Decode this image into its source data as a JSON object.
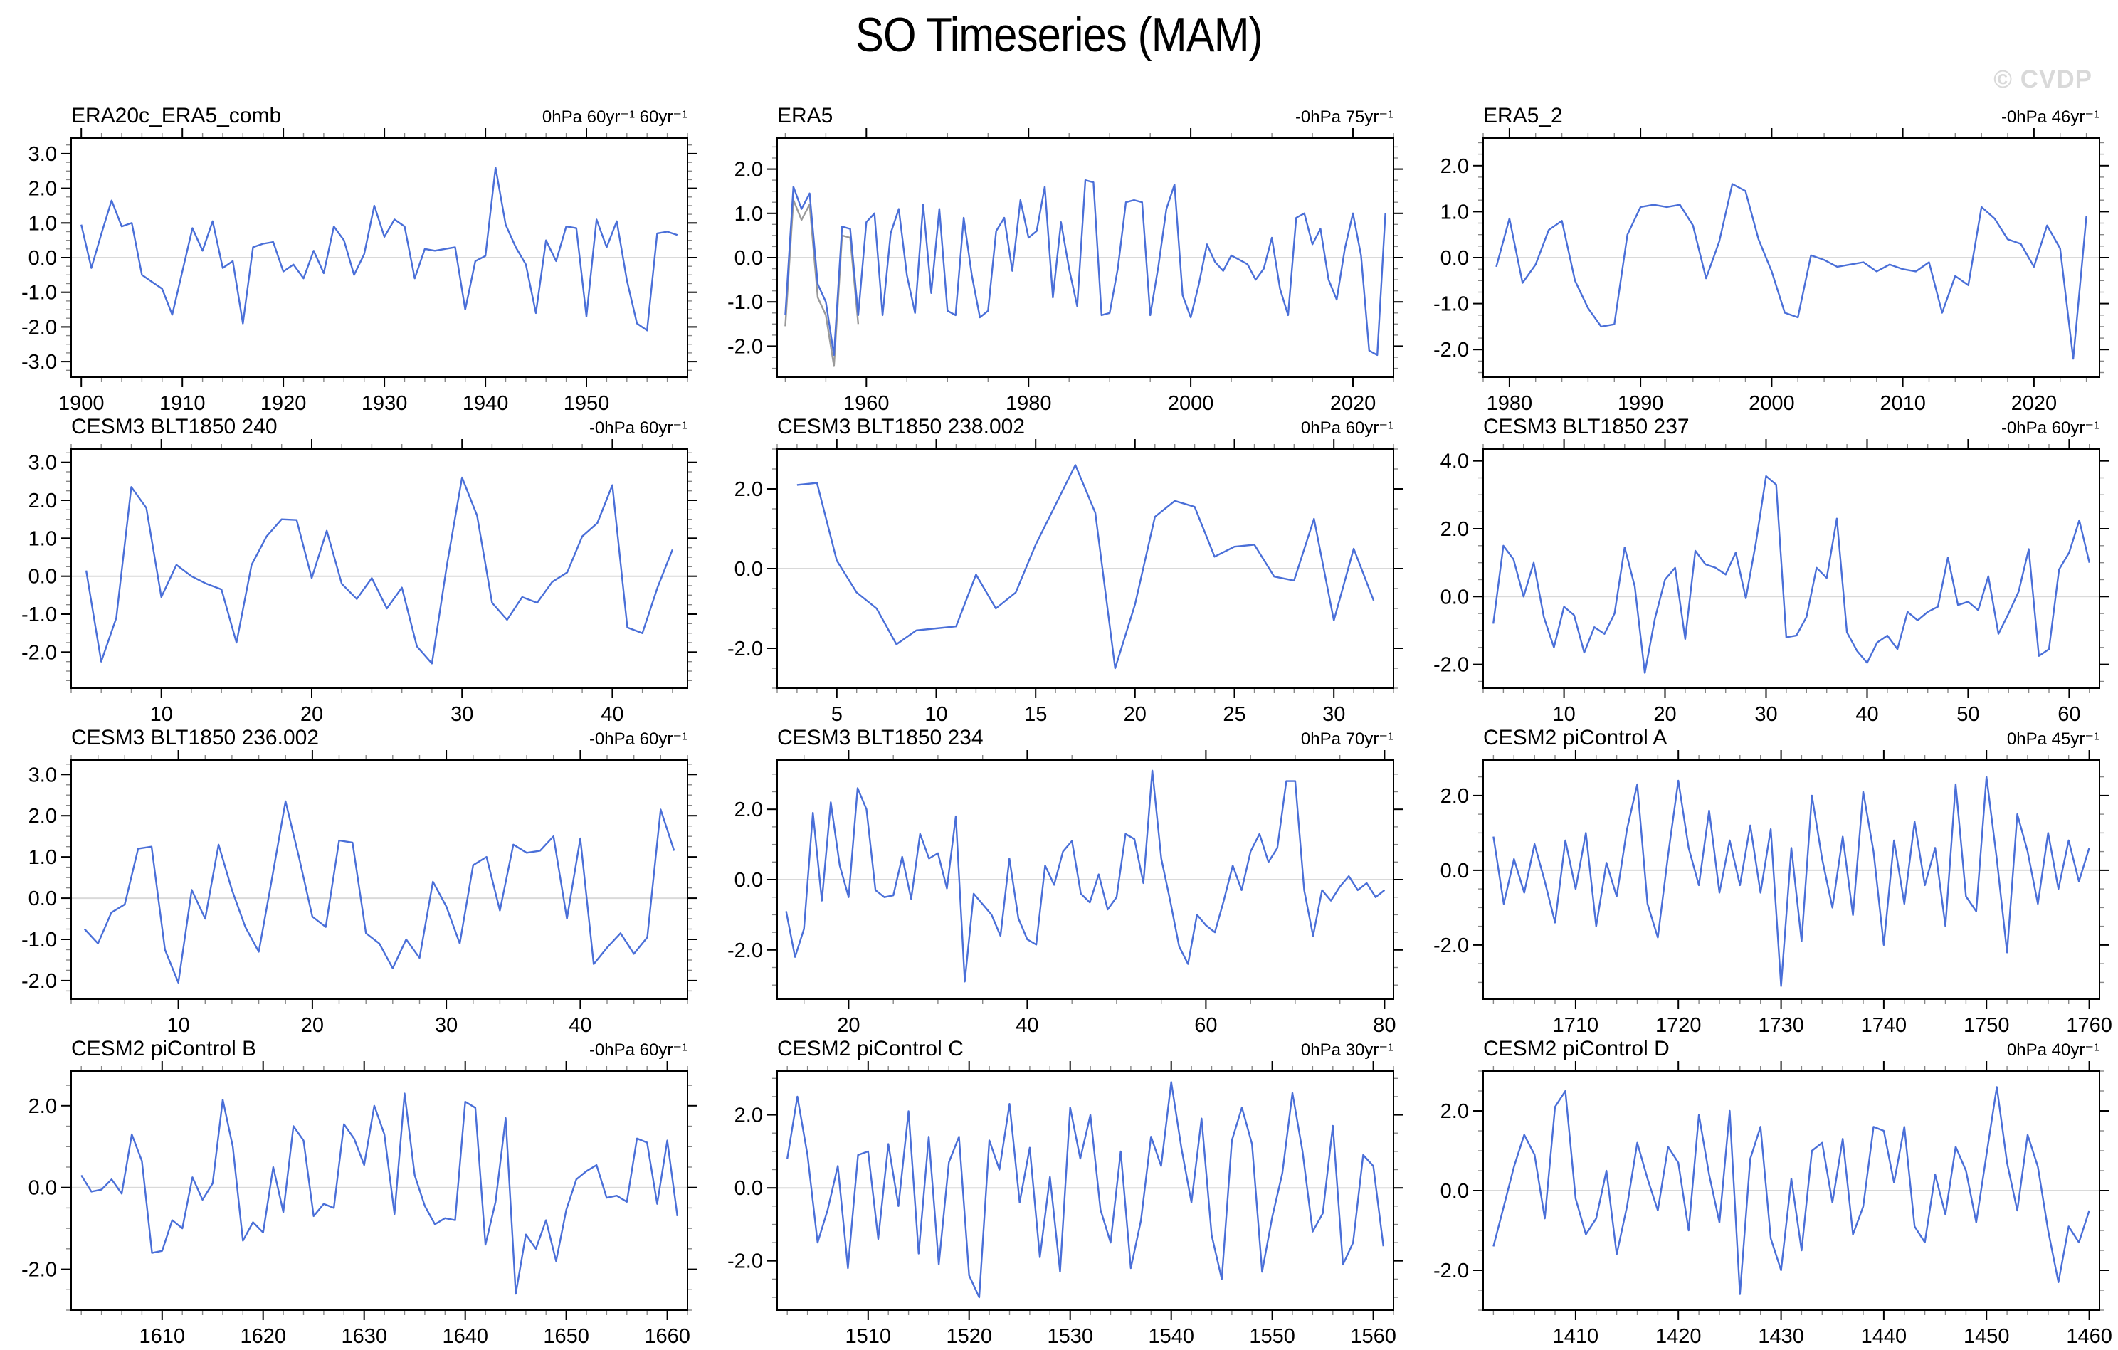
{
  "page": {
    "title": "SO Timeseries (MAM)",
    "watermark": "© CVDP"
  },
  "colors": {
    "line": "#4a6fd8",
    "overlay_line": "#9a9a9a",
    "zero_line": "#d9d9d9",
    "axis": "#000000",
    "minor_tick": "#888888",
    "watermark": "#d9d9d9"
  },
  "chart_data": [
    {
      "type": "line",
      "title": "ERA20c_ERA5_comb",
      "units": "0hPa 60yr⁻¹ 60yr⁻¹",
      "xlabel": "",
      "ylabel": "",
      "grid": false,
      "zero_line": true,
      "legend": "none",
      "x_start": 1900,
      "x_step": 1,
      "xlim": [
        1899,
        1960
      ],
      "ylim": [
        -3.45,
        3.45
      ],
      "x_ticks": [
        1900,
        1910,
        1920,
        1930,
        1940,
        1950
      ],
      "x_minor_step": 2,
      "y_ticks": [
        3,
        2,
        1,
        0,
        -1,
        -2,
        -3
      ],
      "y_minor_step": 0.25,
      "values": [
        0.95,
        -0.3,
        0.7,
        1.65,
        0.9,
        1.0,
        -0.5,
        -0.7,
        -0.9,
        -1.65,
        -0.4,
        0.85,
        0.2,
        1.05,
        -0.3,
        -0.1,
        -1.9,
        0.3,
        0.4,
        0.45,
        -0.4,
        -0.2,
        -0.6,
        0.2,
        -0.45,
        0.9,
        0.5,
        -0.5,
        0.1,
        1.5,
        0.6,
        1.1,
        0.9,
        -0.6,
        0.25,
        0.2,
        0.25,
        0.3,
        -1.5,
        -0.1,
        0.05,
        2.6,
        0.95,
        0.3,
        -0.2,
        -1.6,
        0.5,
        -0.1,
        0.9,
        0.85,
        -1.7,
        1.1,
        0.3,
        1.05,
        -0.65,
        -1.9,
        -2.1,
        0.7,
        0.75,
        0.65
      ]
    },
    {
      "type": "line",
      "title": "ERA5",
      "units": "-0hPa 75yr⁻¹",
      "xlabel": "",
      "ylabel": "",
      "grid": false,
      "zero_line": true,
      "legend": "none",
      "x_start": 1950,
      "x_step": 1,
      "xlim": [
        1949,
        2025
      ],
      "ylim": [
        -2.7,
        2.7
      ],
      "x_ticks": [
        1960,
        1980,
        2000,
        2020
      ],
      "x_minor_step": 5,
      "y_ticks": [
        2,
        1,
        0,
        -1,
        -2
      ],
      "y_minor_step": 0.25,
      "values": [
        -1.3,
        1.6,
        1.1,
        1.45,
        -0.6,
        -1.0,
        -2.2,
        0.7,
        0.65,
        -1.3,
        0.8,
        1.0,
        -1.3,
        0.55,
        1.1,
        -0.4,
        -1.25,
        1.2,
        -0.8,
        1.1,
        -1.2,
        -1.3,
        0.9,
        -0.4,
        -1.35,
        -1.2,
        0.6,
        0.9,
        -0.3,
        1.3,
        0.45,
        0.6,
        1.6,
        -0.9,
        0.8,
        -0.25,
        -1.1,
        1.75,
        1.7,
        -1.3,
        -1.25,
        -0.25,
        1.25,
        1.3,
        1.25,
        -1.3,
        -0.2,
        1.1,
        1.65,
        -0.85,
        -1.35,
        -0.6,
        0.3,
        -0.1,
        -0.3,
        0.05,
        -0.05,
        -0.15,
        -0.5,
        -0.25,
        0.45,
        -0.7,
        -1.3,
        0.9,
        1.0,
        0.3,
        0.65,
        -0.5,
        -0.95,
        0.2,
        1.0,
        0.05,
        -2.1,
        -2.2,
        1.0
      ],
      "series2": {
        "name": "overlay",
        "x_start": 1950,
        "x_step": 1,
        "values": [
          -1.55,
          1.3,
          0.85,
          1.2,
          -0.9,
          -1.3,
          -2.45,
          0.5,
          0.45,
          -1.5
        ]
      }
    },
    {
      "type": "line",
      "title": "ERA5_2",
      "units": "-0hPa 46yr⁻¹",
      "xlabel": "",
      "ylabel": "",
      "grid": false,
      "zero_line": true,
      "legend": "none",
      "x_start": 1979,
      "x_step": 1,
      "xlim": [
        1978,
        2025
      ],
      "ylim": [
        -2.6,
        2.6
      ],
      "x_ticks": [
        1980,
        1990,
        2000,
        2010,
        2020
      ],
      "x_minor_step": 2,
      "y_ticks": [
        2,
        1,
        0,
        -1,
        -2
      ],
      "y_minor_step": 0.25,
      "values": [
        -0.2,
        0.85,
        -0.55,
        -0.15,
        0.6,
        0.8,
        -0.5,
        -1.1,
        -1.5,
        -1.45,
        0.5,
        1.1,
        1.15,
        1.1,
        1.15,
        0.7,
        -0.45,
        0.35,
        1.6,
        1.45,
        0.4,
        -0.3,
        -1.2,
        -1.3,
        0.05,
        -0.05,
        -0.2,
        -0.15,
        -0.1,
        -0.3,
        -0.15,
        -0.25,
        -0.3,
        -0.1,
        -1.2,
        -0.4,
        -0.6,
        1.1,
        0.85,
        0.4,
        0.3,
        -0.2,
        0.7,
        0.2,
        -2.2,
        0.9
      ]
    },
    {
      "type": "line",
      "title": "CESM3 BLT1850 240",
      "units": "-0hPa 60yr⁻¹",
      "xlabel": "",
      "ylabel": "",
      "grid": false,
      "zero_line": true,
      "legend": "none",
      "x_start": 5,
      "x_step": 1,
      "xlim": [
        4,
        45
      ],
      "ylim": [
        -2.95,
        3.35
      ],
      "x_ticks": [
        10,
        20,
        30,
        40
      ],
      "x_minor_step": 2,
      "y_ticks": [
        3,
        2,
        1,
        0,
        -1,
        -2
      ],
      "y_minor_step": 0.25,
      "values": [
        0.15,
        -2.25,
        -1.1,
        2.35,
        1.8,
        -0.55,
        0.3,
        0.0,
        -0.2,
        -0.35,
        -1.75,
        0.3,
        1.05,
        1.5,
        1.48,
        -0.05,
        1.2,
        -0.2,
        -0.6,
        -0.05,
        -0.85,
        -0.3,
        -1.85,
        -2.3,
        0.3,
        2.6,
        1.6,
        -0.7,
        -1.15,
        -0.55,
        -0.7,
        -0.15,
        0.1,
        1.05,
        1.4,
        2.4,
        -1.35,
        -1.5,
        -0.3,
        0.7
      ]
    },
    {
      "type": "line",
      "title": "CESM3 BLT1850 238.002",
      "units": "0hPa 60yr⁻¹",
      "xlabel": "",
      "ylabel": "",
      "grid": false,
      "zero_line": true,
      "legend": "none",
      "x_start": 3,
      "x_step": 1,
      "xlim": [
        2,
        33
      ],
      "ylim": [
        -3.0,
        3.0
      ],
      "x_ticks": [
        5,
        10,
        15,
        20,
        25,
        30
      ],
      "x_minor_step": 1,
      "y_ticks": [
        2,
        0,
        -2
      ],
      "y_minor_step": 0.5,
      "values": [
        2.1,
        2.15,
        0.2,
        -0.6,
        -1.0,
        -1.9,
        -1.55,
        -1.5,
        -1.45,
        -0.15,
        -1.0,
        -0.6,
        0.6,
        1.6,
        2.6,
        1.4,
        -2.5,
        -0.9,
        1.3,
        1.7,
        1.55,
        0.3,
        0.55,
        0.6,
        -0.2,
        -0.3,
        1.25,
        -1.3,
        0.5,
        -0.8
      ]
    },
    {
      "type": "line",
      "title": "CESM3 BLT1850 237",
      "units": "-0hPa 60yr⁻¹",
      "xlabel": "",
      "ylabel": "",
      "grid": false,
      "zero_line": true,
      "legend": "none",
      "x_start": 3,
      "x_step": 1,
      "xlim": [
        2,
        63
      ],
      "ylim": [
        -2.7,
        4.35
      ],
      "x_ticks": [
        10,
        20,
        30,
        40,
        50,
        60
      ],
      "x_minor_step": 2,
      "y_ticks": [
        4,
        2,
        0,
        -2
      ],
      "y_minor_step": 0.5,
      "values": [
        -0.8,
        1.5,
        1.1,
        0.0,
        1.0,
        -0.6,
        -1.5,
        -0.3,
        -0.55,
        -1.65,
        -0.9,
        -1.1,
        -0.5,
        1.45,
        0.3,
        -2.25,
        -0.65,
        0.5,
        0.85,
        -1.25,
        1.35,
        0.95,
        0.85,
        0.65,
        1.3,
        -0.05,
        1.6,
        3.55,
        3.3,
        -1.2,
        -1.15,
        -0.6,
        0.85,
        0.55,
        2.3,
        -1.05,
        -1.6,
        -1.95,
        -1.35,
        -1.15,
        -1.55,
        -0.45,
        -0.7,
        -0.45,
        -0.3,
        1.15,
        -0.25,
        -0.15,
        -0.4,
        0.6,
        -1.1,
        -0.5,
        0.15,
        1.4,
        -1.75,
        -1.55,
        0.8,
        1.3,
        2.25,
        1.0
      ]
    },
    {
      "type": "line",
      "title": "CESM3 BLT1850 236.002",
      "units": "-0hPa 60yr⁻¹",
      "xlabel": "",
      "ylabel": "",
      "grid": false,
      "zero_line": true,
      "legend": "none",
      "x_start": 3,
      "x_step": 1,
      "xlim": [
        2,
        48
      ],
      "ylim": [
        -2.45,
        3.35
      ],
      "x_ticks": [
        10,
        20,
        30,
        40
      ],
      "x_minor_step": 2,
      "y_ticks": [
        3,
        2,
        1,
        0,
        -1,
        -2
      ],
      "y_minor_step": 0.25,
      "values": [
        -0.75,
        -1.1,
        -0.35,
        -0.15,
        1.2,
        1.25,
        -1.25,
        -2.05,
        0.2,
        -0.5,
        1.3,
        0.2,
        -0.7,
        -1.3,
        0.5,
        2.35,
        1.0,
        -0.45,
        -0.7,
        1.4,
        1.35,
        -0.85,
        -1.1,
        -1.7,
        -1.0,
        -1.45,
        0.4,
        -0.2,
        -1.1,
        0.8,
        1.0,
        -0.3,
        1.3,
        1.1,
        1.15,
        1.5,
        -0.5,
        1.45,
        -1.6,
        -1.2,
        -0.85,
        -1.35,
        -0.95,
        2.15,
        1.15
      ]
    },
    {
      "type": "line",
      "title": "CESM3 BLT1850 234",
      "units": "0hPa 70yr⁻¹",
      "xlabel": "",
      "ylabel": "",
      "grid": false,
      "zero_line": true,
      "legend": "none",
      "x_start": 13,
      "x_step": 1,
      "xlim": [
        12,
        81
      ],
      "ylim": [
        -3.4,
        3.4
      ],
      "x_ticks": [
        20,
        40,
        60,
        80
      ],
      "x_minor_step": 5,
      "y_ticks": [
        2,
        0,
        -2
      ],
      "y_minor_step": 0.5,
      "values": [
        -0.9,
        -2.2,
        -1.4,
        1.9,
        -0.6,
        2.2,
        0.4,
        -0.5,
        2.6,
        2.0,
        -0.3,
        -0.5,
        -0.45,
        0.65,
        -0.55,
        1.3,
        0.6,
        0.75,
        -0.25,
        1.8,
        -2.9,
        -0.4,
        -0.7,
        -1.0,
        -1.6,
        0.6,
        -1.1,
        -1.7,
        -1.85,
        0.4,
        -0.15,
        0.8,
        1.1,
        -0.4,
        -0.65,
        0.15,
        -0.85,
        -0.5,
        1.3,
        1.15,
        -0.1,
        3.1,
        0.6,
        -0.6,
        -1.9,
        -2.4,
        -1.0,
        -1.3,
        -1.5,
        -0.6,
        0.4,
        -0.3,
        0.8,
        1.3,
        0.5,
        0.9,
        2.8,
        2.8,
        -0.3,
        -1.6,
        -0.3,
        -0.6,
        -0.2,
        0.1,
        -0.3,
        -0.1,
        -0.5,
        -0.3
      ]
    },
    {
      "type": "line",
      "title": "CESM2 piControl A",
      "units": "0hPa 45yr⁻¹",
      "xlabel": "",
      "ylabel": "",
      "grid": false,
      "zero_line": true,
      "legend": "none",
      "x_start": 1702,
      "x_step": 1,
      "xlim": [
        1701,
        1761
      ],
      "ylim": [
        -3.45,
        2.95
      ],
      "x_ticks": [
        1710,
        1720,
        1730,
        1740,
        1750,
        1760
      ],
      "x_minor_step": 2,
      "y_ticks": [
        2,
        0,
        -2
      ],
      "y_minor_step": 0.5,
      "values": [
        0.9,
        -0.9,
        0.3,
        -0.6,
        0.7,
        -0.3,
        -1.4,
        0.8,
        -0.5,
        1.0,
        -1.5,
        0.2,
        -0.7,
        1.1,
        2.3,
        -0.9,
        -1.8,
        0.4,
        2.4,
        0.6,
        -0.4,
        1.6,
        -0.6,
        0.8,
        -0.4,
        1.2,
        -0.6,
        1.1,
        -3.1,
        0.6,
        -1.9,
        2.0,
        0.3,
        -1.0,
        0.9,
        -1.2,
        2.1,
        0.5,
        -2.0,
        0.8,
        -0.9,
        1.3,
        -0.4,
        0.6,
        -1.5,
        2.3,
        -0.7,
        -1.1,
        2.5,
        0.3,
        -2.2,
        1.5,
        0.5,
        -0.9,
        1.0,
        -0.5,
        0.8,
        -0.3,
        0.6
      ]
    },
    {
      "type": "line",
      "title": "CESM2 piControl B",
      "units": "-0hPa 60yr⁻¹",
      "xlabel": "",
      "ylabel": "",
      "grid": false,
      "zero_line": true,
      "legend": "none",
      "x_start": 1602,
      "x_step": 1,
      "xlim": [
        1601,
        1662
      ],
      "ylim": [
        -3.0,
        2.85
      ],
      "x_ticks": [
        1610,
        1620,
        1630,
        1640,
        1650,
        1660
      ],
      "x_minor_step": 2,
      "y_ticks": [
        2,
        0,
        -2
      ],
      "y_minor_step": 0.5,
      "values": [
        0.3,
        -0.1,
        -0.05,
        0.2,
        -0.15,
        1.3,
        0.65,
        -1.6,
        -1.55,
        -0.8,
        -1.0,
        0.25,
        -0.3,
        0.1,
        2.15,
        1.0,
        -1.3,
        -0.85,
        -1.1,
        0.5,
        -0.6,
        1.5,
        1.15,
        -0.7,
        -0.4,
        -0.5,
        1.55,
        1.2,
        0.55,
        2.0,
        1.3,
        -0.65,
        2.3,
        0.3,
        -0.45,
        -0.9,
        -0.75,
        -0.8,
        2.1,
        1.95,
        -1.4,
        -0.35,
        1.7,
        -2.6,
        -1.15,
        -1.5,
        -0.8,
        -1.8,
        -0.55,
        0.2,
        0.4,
        0.55,
        -0.25,
        -0.2,
        -0.35,
        1.2,
        1.1,
        -0.4,
        1.15,
        -0.7
      ]
    },
    {
      "type": "line",
      "title": "CESM2 piControl C",
      "units": "0hPa 30yr⁻¹",
      "xlabel": "",
      "ylabel": "",
      "grid": false,
      "zero_line": true,
      "legend": "none",
      "x_start": 1502,
      "x_step": 1,
      "xlim": [
        1501,
        1562
      ],
      "ylim": [
        -3.35,
        3.2
      ],
      "x_ticks": [
        1510,
        1520,
        1530,
        1540,
        1550,
        1560
      ],
      "x_minor_step": 2,
      "y_ticks": [
        2,
        0,
        -2
      ],
      "y_minor_step": 0.5,
      "values": [
        0.8,
        2.5,
        0.9,
        -1.5,
        -0.6,
        0.6,
        -2.2,
        0.9,
        1.0,
        -1.4,
        1.2,
        -0.5,
        2.1,
        -1.8,
        1.4,
        -2.1,
        0.7,
        1.4,
        -2.4,
        -3.0,
        1.3,
        0.5,
        2.3,
        -0.4,
        1.1,
        -1.9,
        0.3,
        -2.3,
        2.2,
        0.8,
        2.0,
        -0.6,
        -1.5,
        1.0,
        -2.2,
        -0.9,
        1.4,
        0.6,
        2.9,
        1.1,
        -0.4,
        1.9,
        -1.3,
        -2.5,
        1.3,
        2.2,
        1.2,
        -2.3,
        -0.8,
        0.4,
        2.6,
        1.0,
        -1.2,
        -0.7,
        1.7,
        -2.1,
        -1.5,
        0.9,
        0.6,
        -1.6
      ]
    },
    {
      "type": "line",
      "title": "CESM2 piControl D",
      "units": "0hPa 40yr⁻¹",
      "xlabel": "",
      "ylabel": "",
      "grid": false,
      "zero_line": true,
      "legend": "none",
      "x_start": 1402,
      "x_step": 1,
      "xlim": [
        1401,
        1461
      ],
      "ylim": [
        -3.0,
        3.0
      ],
      "x_ticks": [
        1410,
        1420,
        1430,
        1440,
        1450,
        1460
      ],
      "x_minor_step": 2,
      "y_ticks": [
        2,
        0,
        -2
      ],
      "y_minor_step": 0.5,
      "values": [
        -1.4,
        -0.4,
        0.6,
        1.4,
        0.9,
        -0.7,
        2.1,
        2.5,
        -0.2,
        -1.1,
        -0.7,
        0.5,
        -1.6,
        -0.4,
        1.2,
        0.3,
        -0.5,
        1.1,
        0.7,
        -1.0,
        1.9,
        0.4,
        -0.8,
        2.0,
        -2.6,
        0.8,
        1.6,
        -1.2,
        -2.0,
        0.3,
        -1.5,
        1.0,
        1.2,
        -0.3,
        1.3,
        -1.1,
        -0.4,
        1.6,
        1.5,
        0.2,
        1.6,
        -0.9,
        -1.3,
        0.4,
        -0.6,
        1.1,
        0.5,
        -0.8,
        0.9,
        2.6,
        0.7,
        -0.5,
        1.4,
        0.6,
        -1.0,
        -2.3,
        -0.9,
        -1.3,
        -0.5
      ]
    }
  ]
}
